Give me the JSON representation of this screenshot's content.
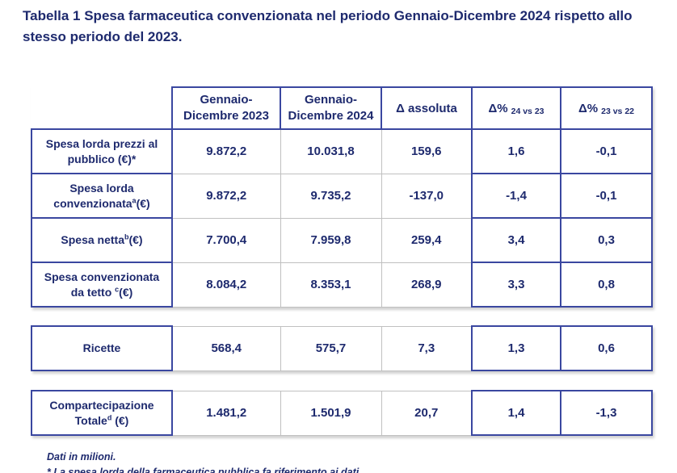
{
  "colors": {
    "text_navy": "#1e2a6e",
    "border_navy": "#3a47a0",
    "border_gray": "#c0c0c0",
    "background": "#ffffff"
  },
  "title": {
    "line1": "Tabella 1 Spesa farmaceutica convenzionata nel periodo Gennaio-Dicembre 2024 rispetto allo",
    "line2": "stesso periodo del 2023."
  },
  "table": {
    "header": {
      "col_2023": {
        "line1": "Gennaio-",
        "line2": "Dicembre 2023"
      },
      "col_2024": {
        "line1": "Gennaio-",
        "line2": "Dicembre 2024"
      },
      "col_delta": "Δ assoluta",
      "col_pct_24_23": {
        "main": "Δ%",
        "sub": "24 vs 23"
      },
      "col_pct_23_22": {
        "main": "Δ%",
        "sub": "23 vs 22"
      }
    },
    "rows": [
      {
        "label": {
          "pre": "Spesa lorda prezzi al pubblico (€)*",
          "sup": "",
          "post": ""
        },
        "values": [
          "9.872,2",
          "10.031,8",
          "159,6",
          "1,6",
          "-0,1"
        ]
      },
      {
        "label": {
          "pre": "Spesa lorda convenzionata",
          "sup": "a",
          "post": "(€)"
        },
        "values": [
          "9.872,2",
          "9.735,2",
          "-137,0",
          "-1,4",
          "-0,1"
        ]
      },
      {
        "label": {
          "pre": "Spesa netta",
          "sup": "b",
          "post": "(€)"
        },
        "values": [
          "7.700,4",
          "7.959,8",
          "259,4",
          "3,4",
          "0,3"
        ]
      },
      {
        "label": {
          "pre": "Spesa convenzionata da tetto ",
          "sup": "c",
          "post": "(€)"
        },
        "values": [
          "8.084,2",
          "8.353,1",
          "268,9",
          "3,3",
          "0,8"
        ]
      }
    ]
  },
  "ricette": {
    "label": {
      "pre": "Ricette",
      "sup": "",
      "post": ""
    },
    "values": [
      "568,4",
      "575,7",
      "7,3",
      "1,3",
      "0,6"
    ]
  },
  "compartecipazione": {
    "label": {
      "pre": "Compartecipazione Totale",
      "sup": "d",
      "post": " (€)"
    },
    "values": [
      "1.481,2",
      "1.501,9",
      "20,7",
      "1,4",
      "-1,3"
    ]
  },
  "footnotes": {
    "line1": "Dati in milioni.",
    "line2_partial": "* La spesa lorda della farmaceutica pubblica fa riferimento ai dati"
  }
}
